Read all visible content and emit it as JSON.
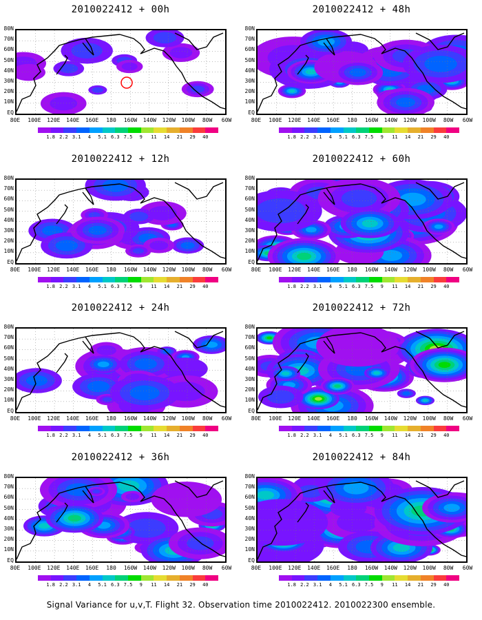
{
  "caption": "Signal Variance for u,v,T. Flight 32. Observation time 2010022412. 2010022300 ensemble.",
  "lat_labels": [
    "80N",
    "70N",
    "60N",
    "50N",
    "40N",
    "30N",
    "20N",
    "10N",
    "EQ"
  ],
  "lon_labels": [
    "80E",
    "100E",
    "120E",
    "140E",
    "160E",
    "180",
    "160W",
    "140W",
    "120W",
    "100W",
    "80W",
    "60W"
  ],
  "colorbar": {
    "labels": [
      "1.8",
      "2.2",
      "3.1",
      "4",
      "5.1",
      "6.3",
      "7.5",
      "9",
      "11",
      "14",
      "21",
      "29",
      "40"
    ],
    "colors": [
      "#a010f0",
      "#7814ff",
      "#3c3cff",
      "#0064ff",
      "#00a0ff",
      "#00c8c8",
      "#00d278",
      "#00dc00",
      "#a0e632",
      "#e6dc32",
      "#e6af2d",
      "#f08228",
      "#fa3c3c",
      "#f00082"
    ]
  },
  "panels": [
    {
      "title": "2010022412 + 00h",
      "intensity": 0.18
    },
    {
      "title": "2010022412 + 12h",
      "intensity": 0.32
    },
    {
      "title": "2010022412 + 24h",
      "intensity": 0.45
    },
    {
      "title": "2010022412 + 36h",
      "intensity": 0.55
    },
    {
      "title": "2010022412 + 48h",
      "intensity": 0.62
    },
    {
      "title": "2010022412 + 60h",
      "intensity": 0.7
    },
    {
      "title": "2010022412 + 72h",
      "intensity": 0.78
    },
    {
      "title": "2010022412 + 84h",
      "intensity": 0.86
    }
  ]
}
